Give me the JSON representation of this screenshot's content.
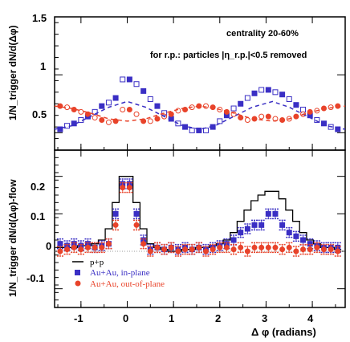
{
  "chart_data": [
    {
      "type": "scatter",
      "ylabel": "1/N_trigger dN/d(Δφ)",
      "ylim": [
        0.35,
        1.5
      ],
      "xlim": [
        -1.57,
        4.71
      ],
      "yticks": [
        "0.5",
        "1",
        "1.5"
      ],
      "annotations": [
        "centrality 20-60%",
        "for r.p.: particles |η_r.p.|<0.5 removed"
      ],
      "series": [
        {
          "key": "in-plane",
          "color": "#3a2fc4",
          "x": [
            -1.45,
            -1.3,
            -1.15,
            -1.0,
            -0.85,
            -0.7,
            -0.55,
            -0.4,
            -0.25,
            -0.1,
            0.05,
            0.2,
            0.35,
            0.5,
            0.65,
            0.8,
            0.95,
            1.1,
            1.25,
            1.4,
            1.55,
            1.7,
            1.85,
            2.0,
            2.15,
            2.3,
            2.45,
            2.6,
            2.75,
            2.9,
            3.05,
            3.2,
            3.35,
            3.5,
            3.65,
            3.8,
            3.95,
            4.1,
            4.25,
            4.4,
            4.55
          ],
          "y": [
            0.53,
            0.56,
            0.58,
            0.61,
            0.64,
            0.68,
            0.73,
            0.76,
            0.8,
            0.96,
            0.96,
            0.92,
            0.86,
            0.79,
            0.73,
            0.67,
            0.62,
            0.58,
            0.55,
            0.52,
            0.52,
            0.52,
            0.55,
            0.6,
            0.65,
            0.71,
            0.75,
            0.8,
            0.84,
            0.87,
            0.87,
            0.85,
            0.83,
            0.79,
            0.74,
            0.7,
            0.65,
            0.61,
            0.58,
            0.55,
            0.53
          ]
        },
        {
          "key": "out-of-plane",
          "color": "#e8432a",
          "x": [
            -1.45,
            -1.3,
            -1.15,
            -1.0,
            -0.85,
            -0.7,
            -0.55,
            -0.4,
            -0.25,
            -0.1,
            0.05,
            0.2,
            0.35,
            0.5,
            0.65,
            0.8,
            0.95,
            1.1,
            1.25,
            1.4,
            1.55,
            1.7,
            1.85,
            2.0,
            2.15,
            2.3,
            2.45,
            2.6,
            2.75,
            2.9,
            3.05,
            3.2,
            3.35,
            3.5,
            3.65,
            3.8,
            3.95,
            4.1,
            4.25,
            4.4,
            4.55
          ],
          "y": [
            0.73,
            0.72,
            0.7,
            0.68,
            0.66,
            0.63,
            0.61,
            0.59,
            0.6,
            0.7,
            0.7,
            0.66,
            0.6,
            0.6,
            0.62,
            0.64,
            0.66,
            0.69,
            0.7,
            0.72,
            0.73,
            0.73,
            0.72,
            0.7,
            0.68,
            0.66,
            0.63,
            0.61,
            0.62,
            0.64,
            0.64,
            0.62,
            0.61,
            0.62,
            0.64,
            0.66,
            0.68,
            0.69,
            0.71,
            0.72,
            0.73
          ]
        },
        {
          "key": "in-plane-flow",
          "color": "#3a2fc4",
          "dashed": true,
          "x": [
            -1.57,
            -1.2,
            -0.8,
            -0.4,
            0.0,
            0.4,
            0.8,
            1.2,
            1.57,
            1.9,
            2.3,
            2.7,
            3.14,
            3.5,
            3.9,
            4.3,
            4.71
          ],
          "y": [
            0.53,
            0.56,
            0.64,
            0.72,
            0.77,
            0.72,
            0.64,
            0.56,
            0.53,
            0.56,
            0.64,
            0.72,
            0.77,
            0.72,
            0.64,
            0.56,
            0.53
          ]
        },
        {
          "key": "out-of-plane-flow",
          "color": "#e8432a",
          "dashed": true,
          "x": [
            -1.57,
            -1.2,
            -0.8,
            -0.4,
            0.0,
            0.4,
            0.8,
            1.2,
            1.57,
            1.9,
            2.3,
            2.7,
            3.14,
            3.5,
            3.9,
            4.3,
            4.71
          ],
          "y": [
            0.73,
            0.71,
            0.67,
            0.62,
            0.6,
            0.62,
            0.67,
            0.71,
            0.73,
            0.71,
            0.67,
            0.62,
            0.6,
            0.62,
            0.67,
            0.71,
            0.73
          ]
        }
      ]
    },
    {
      "type": "scatter",
      "xlabel": "Δ φ (radians)",
      "ylabel": "1/N_trigger dN/d(Δφ)-flow",
      "ylim": [
        -0.15,
        0.27
      ],
      "xlim": [
        -1.57,
        4.71
      ],
      "yticks": [
        "-0.1",
        "0",
        "0.1",
        "0.2"
      ],
      "xticks": [
        "-1",
        "0",
        "1",
        "2",
        "3",
        "4"
      ],
      "series": [
        {
          "name": "p+p",
          "color": "#000000",
          "step": true,
          "x": [
            -1.45,
            -1.3,
            -1.15,
            -1.0,
            -0.85,
            -0.7,
            -0.55,
            -0.4,
            -0.25,
            -0.1,
            0.05,
            0.2,
            0.35,
            0.5,
            0.65,
            0.8,
            0.95,
            1.1,
            1.25,
            1.4,
            1.55,
            1.7,
            1.85,
            2.0,
            2.15,
            2.3,
            2.45,
            2.6,
            2.75,
            2.9,
            3.05,
            3.2,
            3.35,
            3.5,
            3.65,
            3.8,
            3.95,
            4.1,
            4.25,
            4.4,
            4.55
          ],
          "y": [
            0.01,
            0.01,
            0.01,
            0.015,
            0.015,
            0.02,
            0.03,
            0.06,
            0.13,
            0.2,
            0.2,
            0.13,
            0.06,
            0.02,
            0.01,
            0.005,
            0.0,
            0.0,
            0.005,
            0.005,
            0.01,
            0.01,
            0.015,
            0.02,
            0.03,
            0.05,
            0.08,
            0.11,
            0.135,
            0.15,
            0.16,
            0.16,
            0.14,
            0.11,
            0.08,
            0.05,
            0.03,
            0.02,
            0.01,
            0.01,
            0.005
          ]
        },
        {
          "name": "Au+Au, in-plane",
          "color": "#3a2fc4",
          "x": [
            -1.45,
            -1.3,
            -1.15,
            -1.0,
            -0.85,
            -0.7,
            -0.55,
            -0.4,
            -0.25,
            -0.1,
            0.05,
            0.2,
            0.35,
            0.5,
            0.65,
            0.8,
            0.95,
            1.1,
            1.25,
            1.4,
            1.55,
            1.7,
            1.85,
            2.0,
            2.15,
            2.3,
            2.45,
            2.6,
            2.75,
            2.9,
            3.05,
            3.2,
            3.35,
            3.5,
            3.65,
            3.8,
            3.95,
            4.1,
            4.25,
            4.4,
            4.55
          ],
          "y": [
            0.02,
            0.015,
            0.02,
            0.015,
            0.02,
            0.01,
            0.015,
            0.02,
            0.1,
            0.18,
            0.18,
            0.1,
            0.03,
            0.005,
            0.01,
            0.005,
            0.01,
            0.005,
            0.01,
            0.005,
            0.01,
            0.005,
            0.01,
            0.015,
            0.02,
            0.03,
            0.05,
            0.06,
            0.07,
            0.07,
            0.1,
            0.1,
            0.07,
            0.05,
            0.04,
            0.03,
            0.02,
            0.015,
            0.01,
            0.01,
            0.01
          ]
        },
        {
          "name": "Au+Au, out-of-plane",
          "color": "#e8432a",
          "x": [
            -1.45,
            -1.3,
            -1.15,
            -1.0,
            -0.85,
            -0.7,
            -0.55,
            -0.4,
            -0.25,
            -0.1,
            0.05,
            0.2,
            0.35,
            0.5,
            0.65,
            0.8,
            0.95,
            1.1,
            1.25,
            1.4,
            1.55,
            1.7,
            1.85,
            2.0,
            2.15,
            2.3,
            2.45,
            2.6,
            2.75,
            2.9,
            3.05,
            3.2,
            3.35,
            3.5,
            3.65,
            3.8,
            3.95,
            4.1,
            4.25,
            4.4,
            4.55
          ],
          "y": [
            0.0,
            0.005,
            0.01,
            0.005,
            0.01,
            0.01,
            0.01,
            0.02,
            0.07,
            0.17,
            0.17,
            0.07,
            0.02,
            0.0,
            0.01,
            0.005,
            0.01,
            0.0,
            0.005,
            0.005,
            0.01,
            0.0,
            0.005,
            0.01,
            0.01,
            0.005,
            0.01,
            0.0,
            0.01,
            0.01,
            0.01,
            0.01,
            0.005,
            0.01,
            0.0,
            0.005,
            0.005,
            0.01,
            0.005,
            0.005,
            0.0
          ]
        }
      ]
    }
  ]
}
